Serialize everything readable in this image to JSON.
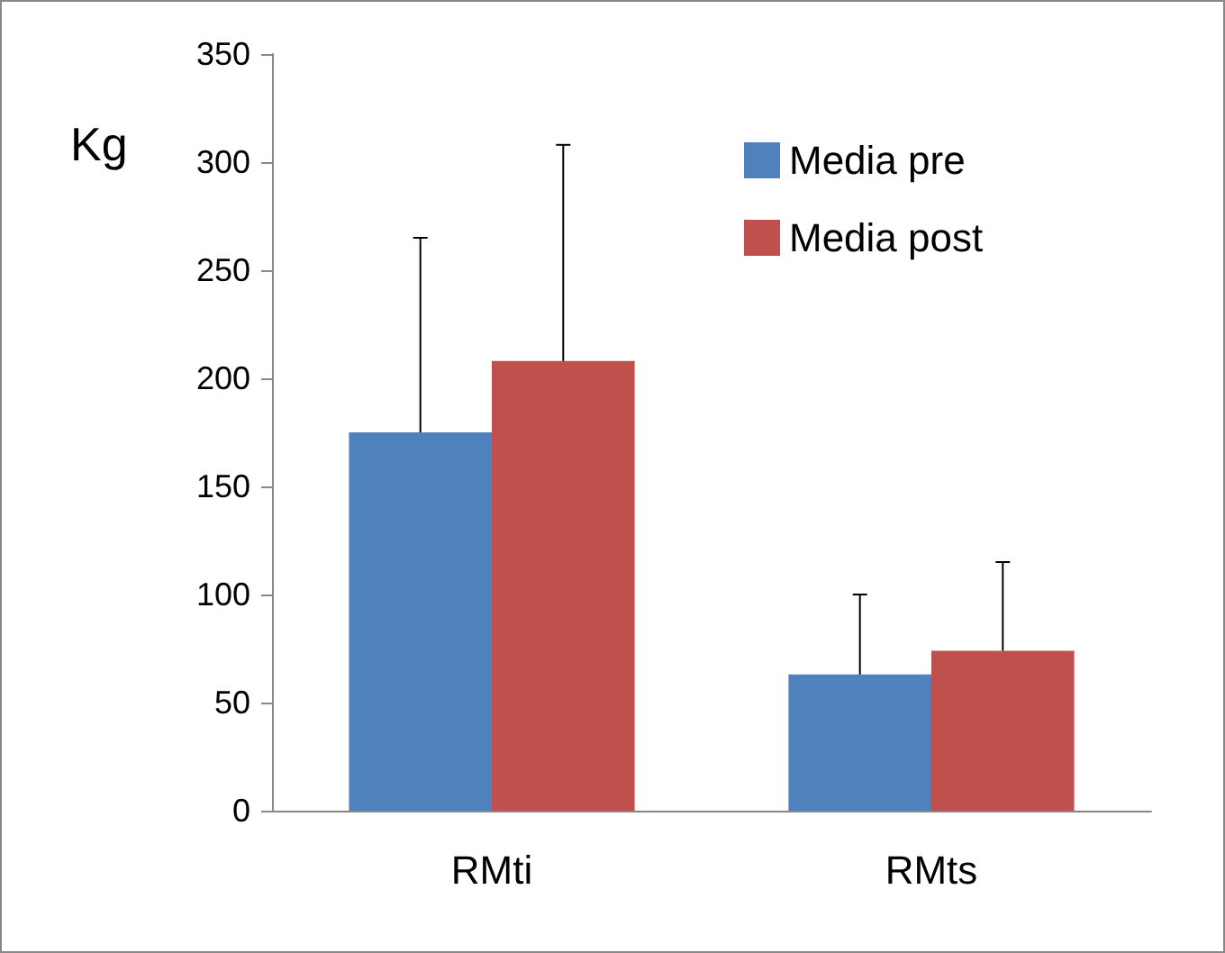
{
  "chart_data": {
    "type": "bar",
    "ylabel": "Kg",
    "categories": [
      "RMti",
      "RMts"
    ],
    "series": [
      {
        "name": "Media pre",
        "color": "#4f81bd",
        "values": [
          175,
          63
        ],
        "errors": [
          [
            175,
            265
          ],
          [
            63,
            100
          ]
        ]
      },
      {
        "name": "Media post",
        "color": "#c0504d",
        "values": [
          208,
          74
        ],
        "errors": [
          [
            208,
            308
          ],
          [
            74,
            115
          ]
        ]
      }
    ],
    "ylim": [
      0,
      350
    ],
    "yticks": [
      0,
      50,
      100,
      150,
      200,
      250,
      300,
      350
    ],
    "grid": false,
    "legend": "top right"
  }
}
